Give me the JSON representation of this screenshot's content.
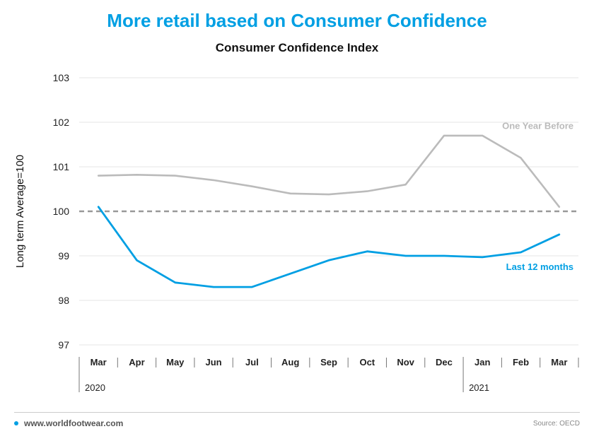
{
  "header": {
    "title": "More retail based on Consumer Confidence",
    "subtitle": "Consumer Confidence Index"
  },
  "footer": {
    "site": "www.worldfootwear.com",
    "source": "Source: OECD"
  },
  "colors": {
    "title": "#009fe3",
    "last12": "#009fe3",
    "yearBefore": "#bbbbbb",
    "reference": "#999999",
    "grid": "#e6e6e6"
  },
  "chart_data": {
    "type": "line",
    "title": "Consumer Confidence Index",
    "ylabel": "Long term Average=100",
    "ylim": [
      97,
      103
    ],
    "yticks": [
      97,
      98,
      99,
      100,
      101,
      102,
      103
    ],
    "categories": [
      "Mar",
      "Apr",
      "May",
      "Jun",
      "Jul",
      "Aug",
      "Sep",
      "Oct",
      "Nov",
      "Dec",
      "Jan",
      "Feb",
      "Mar"
    ],
    "year_labels": [
      {
        "label": "2020",
        "start_index": 0
      },
      {
        "label": "2021",
        "start_index": 10
      }
    ],
    "reference_line": 100,
    "grid": "horizontal",
    "series": [
      {
        "name": "One Year Before",
        "color": "#bbbbbb",
        "values": [
          100.8,
          100.82,
          100.8,
          100.7,
          100.56,
          100.4,
          100.38,
          100.45,
          100.6,
          101.7,
          101.7,
          101.2,
          100.1
        ]
      },
      {
        "name": "Last 12 months",
        "color": "#009fe3",
        "values": [
          100.1,
          98.9,
          98.4,
          98.3,
          98.3,
          98.6,
          98.9,
          99.1,
          99.0,
          99.0,
          98.97,
          99.08,
          99.48
        ]
      }
    ]
  }
}
